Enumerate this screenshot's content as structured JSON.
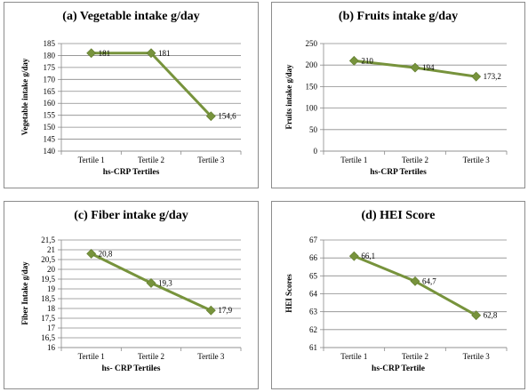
{
  "chart_data": [
    {
      "type": "line",
      "title": "(a) Vegetable intake g/day",
      "xlabel": "hs-CRP Tertiles",
      "ylabel": "Vegetable intake g/day",
      "categories": [
        "Tertile 1",
        "Tertile 2",
        "Tertile 3"
      ],
      "values": [
        181,
        181,
        154.6
      ],
      "data_labels": [
        "181",
        "181",
        "154,6"
      ],
      "ylim": [
        140,
        185
      ],
      "yticks": [
        "140",
        "145",
        "150",
        "155",
        "160",
        "165",
        "170",
        "175",
        "180",
        "185"
      ],
      "grid": true,
      "color": "#77933c"
    },
    {
      "type": "line",
      "title": "(b) Fruits intake g/day",
      "xlabel": "hs-CRP Tertiles",
      "ylabel": "Fruits intake g/day",
      "categories": [
        "Tertile 1",
        "Tertile 2",
        "Tertile 3"
      ],
      "values": [
        210,
        194,
        173.2
      ],
      "data_labels": [
        "210",
        "194",
        "173,2"
      ],
      "ylim": [
        0,
        250
      ],
      "yticks": [
        "0",
        "50",
        "100",
        "150",
        "200",
        "250"
      ],
      "grid": true,
      "color": "#77933c"
    },
    {
      "type": "line",
      "title": "(c) Fiber intake g/day",
      "xlabel": "hs- CRP Tertiles",
      "ylabel": "Fiber Intake g/day",
      "categories": [
        "Tertile 1",
        "Tertile 2",
        "Tertile 3"
      ],
      "values": [
        20.8,
        19.3,
        17.9
      ],
      "data_labels": [
        "20,8",
        "19,3",
        "17,9"
      ],
      "ylim": [
        16,
        21.5
      ],
      "yticks": [
        "16",
        "16,5",
        "17",
        "17,5",
        "18",
        "18,5",
        "19",
        "19,5",
        "20",
        "20,5",
        "21",
        "21,5"
      ],
      "grid": true,
      "color": "#77933c"
    },
    {
      "type": "line",
      "title": "(d) HEI Score",
      "xlabel": "hs-CRP Tertile",
      "ylabel": "HEI Scores",
      "categories": [
        "Tertile 1",
        "Tertile 2",
        "Tertile 3"
      ],
      "values": [
        66.1,
        64.7,
        62.8
      ],
      "data_labels": [
        "66,1",
        "64,7",
        "62,8"
      ],
      "ylim": [
        61,
        67
      ],
      "yticks": [
        "61",
        "62",
        "63",
        "64",
        "65",
        "66",
        "67"
      ],
      "grid": true,
      "color": "#77933c"
    }
  ]
}
